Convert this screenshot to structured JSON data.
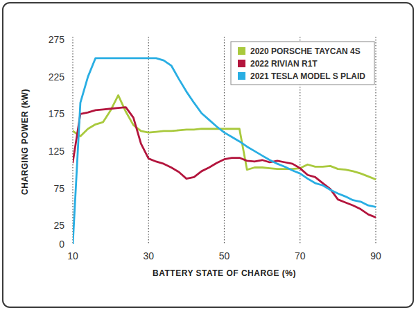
{
  "chart_data": {
    "type": "line",
    "x_label": "BATTERY STATE OF CHARGE (%)",
    "y_label": "CHARGING POWER (kW)",
    "x": [
      10,
      12,
      14,
      16,
      18,
      20,
      22,
      24,
      26,
      28,
      30,
      32,
      34,
      36,
      38,
      40,
      42,
      44,
      46,
      48,
      50,
      52,
      54,
      56,
      58,
      60,
      62,
      64,
      66,
      68,
      70,
      72,
      74,
      76,
      78,
      80,
      82,
      84,
      86,
      88,
      90
    ],
    "series": [
      {
        "name": "2020 PORSCHE TAYCAN 4S",
        "color": "#a9c93d",
        "values": [
          152,
          145,
          155,
          161,
          164,
          180,
          200,
          178,
          160,
          152,
          150,
          151,
          152,
          152,
          153,
          154,
          154,
          155,
          155,
          155,
          155,
          155,
          155,
          100,
          103,
          103,
          102,
          101,
          101,
          101,
          102,
          107,
          104,
          104,
          105,
          101,
          100,
          98,
          95,
          91,
          87
        ]
      },
      {
        "name": "2022 RIVIAN R1T",
        "color": "#b3153d",
        "values": [
          110,
          175,
          177,
          180,
          181,
          182,
          183,
          184,
          170,
          135,
          115,
          111,
          108,
          103,
          97,
          88,
          90,
          98,
          103,
          109,
          114,
          116,
          116,
          112,
          111,
          113,
          110,
          112,
          110,
          108,
          102,
          93,
          90,
          82,
          74,
          60,
          56,
          52,
          47,
          40,
          36
        ]
      },
      {
        "name": "2021 TESLA MODEL S PLAID",
        "color": "#29aee3",
        "values": [
          0,
          190,
          225,
          250,
          250,
          250,
          250,
          250,
          250,
          250,
          250,
          250,
          247,
          240,
          222,
          205,
          190,
          176,
          167,
          158,
          150,
          144,
          138,
          131,
          125,
          119,
          113,
          108,
          104,
          99,
          95,
          88,
          82,
          79,
          73,
          68,
          64,
          59,
          57,
          52,
          50
        ]
      }
    ],
    "xlim": [
      10,
      90
    ],
    "xticks": [
      10,
      30,
      50,
      70,
      90
    ],
    "ylim": [
      0,
      275
    ],
    "yticks": [
      0,
      25,
      75,
      125,
      175,
      225,
      275
    ],
    "grid": true,
    "legend": "upper right"
  }
}
